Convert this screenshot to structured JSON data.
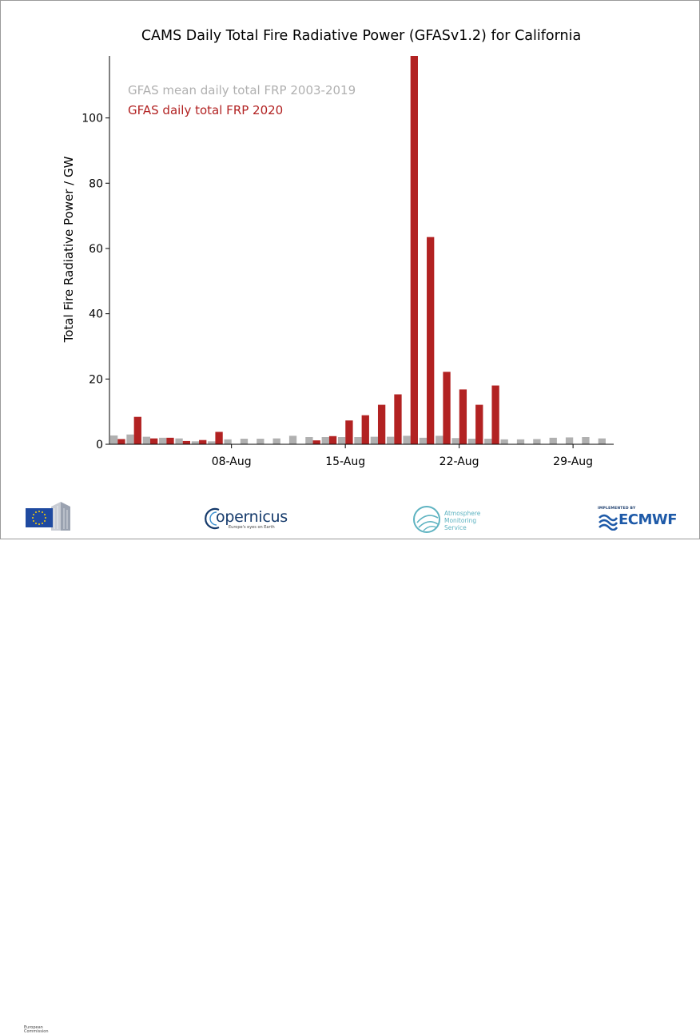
{
  "chart_data": {
    "type": "bar",
    "title": "CAMS Daily Total Fire Radiative Power (GFASv1.2) for California",
    "xlabel": "",
    "ylabel": "Total Fire Radiative Power / GW",
    "ylim": [
      0,
      119
    ],
    "y_ticks": [
      0,
      20,
      40,
      60,
      80,
      100
    ],
    "x_ticks": [
      "08-Aug",
      "15-Aug",
      "22-Aug",
      "29-Aug"
    ],
    "x_tick_days": [
      8,
      15,
      22,
      29
    ],
    "grid": false,
    "legend_position": "top-left",
    "categories": [
      "1",
      "2",
      "3",
      "4",
      "5",
      "6",
      "7",
      "8",
      "9",
      "10",
      "11",
      "12",
      "13",
      "14",
      "15",
      "16",
      "17",
      "18",
      "19",
      "20",
      "21",
      "22",
      "23",
      "24",
      "25",
      "26",
      "27",
      "28",
      "29",
      "30",
      "31"
    ],
    "series": [
      {
        "name": "GFAS mean daily total FRP 2003-2019",
        "color": "#b0b0b0",
        "values": [
          2.7,
          3.0,
          2.3,
          2.0,
          1.8,
          0.9,
          0.9,
          1.5,
          1.7,
          1.7,
          1.8,
          2.6,
          2.2,
          2.2,
          2.2,
          2.2,
          2.3,
          2.3,
          2.6,
          2.0,
          2.6,
          1.9,
          1.7,
          1.7,
          1.5,
          1.5,
          1.6,
          2.0,
          2.1,
          2.2,
          1.8
        ]
      },
      {
        "name": "GFAS daily total FRP 2020",
        "color": "#b22222",
        "values": [
          1.6,
          8.4,
          1.8,
          2.0,
          1.0,
          1.3,
          3.8,
          0,
          0,
          0,
          0,
          0,
          1.2,
          2.5,
          7.3,
          8.9,
          12.1,
          15.3,
          119,
          63.5,
          22.2,
          16.8,
          12.1,
          18.0,
          0,
          0,
          0,
          0,
          0,
          0,
          0
        ]
      }
    ]
  },
  "logos": {
    "eu_caption_line1": "European",
    "eu_caption_line2": "Commission",
    "copernicus_word": "opernicus",
    "copernicus_tagline": "Europe's eyes on Earth",
    "ams_line1": "Atmosphere",
    "ams_line2": "Monitoring Service",
    "ecmwf_implemented": "IMPLEMENTED BY",
    "ecmwf_word": "ECMWF"
  }
}
